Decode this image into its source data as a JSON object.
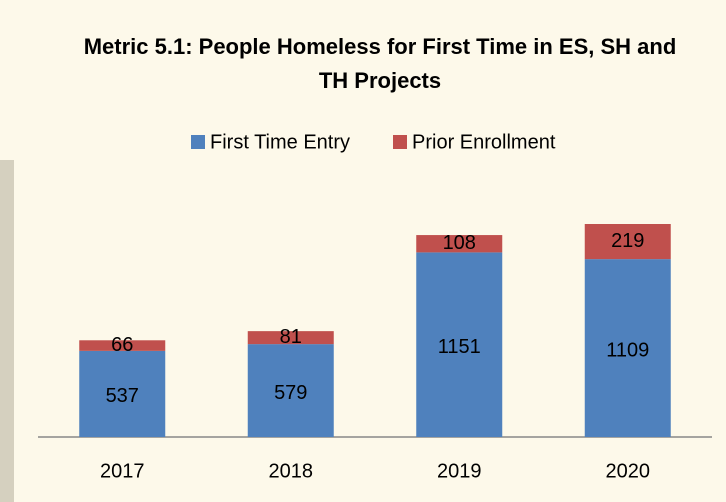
{
  "chart_data": {
    "type": "stacked_bar",
    "title": "Metric 5.1: People Homeless for First Time in ES, SH and TH Projects",
    "categories": [
      "2017",
      "2018",
      "2019",
      "2020"
    ],
    "series": [
      {
        "name": "First Time Entry",
        "color": "#4f81bd",
        "values": [
          537,
          579,
          1151,
          1109
        ]
      },
      {
        "name": "Prior Enrollment",
        "color": "#c0504d",
        "values": [
          66,
          81,
          108,
          219
        ]
      }
    ],
    "legend": "top"
  }
}
